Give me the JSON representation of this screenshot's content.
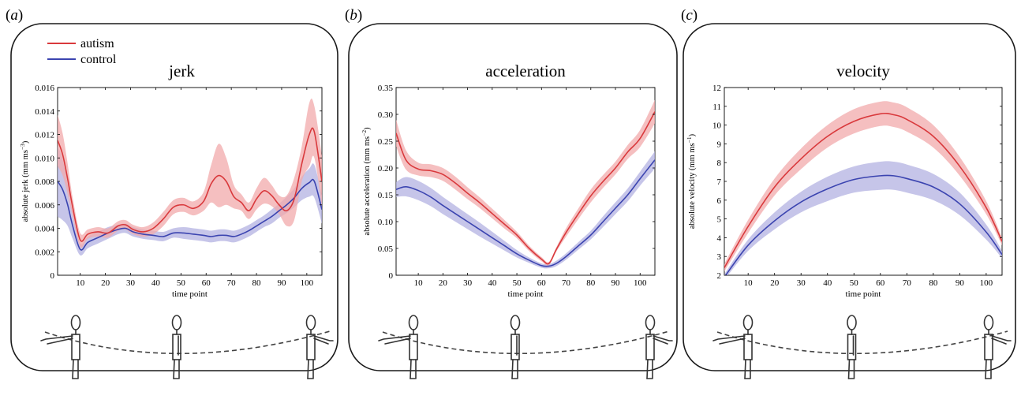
{
  "legend": {
    "items": [
      {
        "label": "autism",
        "color": "#d9393c"
      },
      {
        "label": "control",
        "color": "#3b44b0"
      }
    ]
  },
  "colors": {
    "autism_line": "#d9393c",
    "autism_band": "#f2a9ab",
    "control_line": "#3b44b0",
    "control_band": "#b3b2e2",
    "panel_border": "#1a1a1a",
    "figure_stroke": "#333333"
  },
  "chart_data": [
    {
      "panel_label": "(a)",
      "type": "line",
      "title": "jerk",
      "xlabel": "time point",
      "ylabel": "absolute jerk (mm ms",
      "ylabel_sup": "−3",
      "ylabel_end": ")",
      "xlim": [
        1,
        106
      ],
      "ylim": [
        0,
        0.016
      ],
      "xticks": [
        10,
        20,
        30,
        40,
        50,
        60,
        70,
        80,
        90,
        100
      ],
      "yticks": [
        0,
        0.002,
        0.004,
        0.006,
        0.008,
        0.01,
        0.012,
        0.014,
        0.016
      ],
      "ytick_labels": [
        "0",
        "0.002",
        "0.004",
        "0.006",
        "0.008",
        "0.010",
        "0.012",
        "0.014",
        "0.016"
      ],
      "series": [
        {
          "name": "autism",
          "x": [
            1,
            3,
            5,
            7,
            10,
            13,
            17,
            21,
            25,
            28,
            31,
            35,
            39,
            43,
            47,
            51,
            55,
            59,
            62,
            65,
            68,
            71,
            74,
            77,
            80,
            83,
            86,
            89,
            92,
            95,
            98,
            101,
            103,
            106
          ],
          "y": [
            0.0115,
            0.0103,
            0.0082,
            0.0058,
            0.003,
            0.0035,
            0.0037,
            0.0036,
            0.0042,
            0.0043,
            0.0039,
            0.0037,
            0.004,
            0.0048,
            0.0058,
            0.006,
            0.0057,
            0.0063,
            0.0078,
            0.0085,
            0.008,
            0.0067,
            0.0062,
            0.0055,
            0.0065,
            0.0072,
            0.0068,
            0.006,
            0.0055,
            0.0065,
            0.0095,
            0.012,
            0.0122,
            0.008
          ],
          "spread": [
            0.0022,
            0.0018,
            0.0013,
            0.0008,
            0.0006,
            0.0004,
            0.0004,
            0.0004,
            0.0004,
            0.0004,
            0.0004,
            0.0004,
            0.0005,
            0.0006,
            0.0006,
            0.0006,
            0.0006,
            0.0008,
            0.0016,
            0.0027,
            0.002,
            0.001,
            0.0007,
            0.0007,
            0.0009,
            0.0011,
            0.0009,
            0.0008,
            0.0013,
            0.0018,
            0.0015,
            0.0027,
            0.0022,
            0.0022
          ]
        },
        {
          "name": "control",
          "x": [
            1,
            3,
            5,
            7,
            10,
            13,
            17,
            21,
            25,
            28,
            31,
            35,
            39,
            43,
            47,
            51,
            55,
            59,
            62,
            65,
            68,
            71,
            74,
            77,
            80,
            83,
            86,
            89,
            92,
            95,
            98,
            101,
            103,
            106
          ],
          "y": [
            0.008,
            0.0073,
            0.006,
            0.0042,
            0.0022,
            0.0028,
            0.0032,
            0.0036,
            0.0039,
            0.004,
            0.0037,
            0.0035,
            0.0034,
            0.0033,
            0.0036,
            0.0036,
            0.0035,
            0.0034,
            0.0033,
            0.0034,
            0.0034,
            0.0033,
            0.0035,
            0.0038,
            0.0042,
            0.0046,
            0.005,
            0.0055,
            0.006,
            0.0066,
            0.0074,
            0.0079,
            0.008,
            0.0056
          ]
        },
        {
          "name": "",
          "role": "band",
          "x": [
            1,
            3,
            5,
            7,
            10,
            13,
            17,
            21,
            25,
            28,
            31,
            35,
            39,
            43,
            47,
            51,
            55,
            59,
            62,
            65,
            68,
            71,
            74,
            77,
            80,
            83,
            86,
            89,
            92,
            95,
            98,
            101,
            103,
            106
          ],
          "spread": [
            0.003,
            0.0026,
            0.0018,
            0.0011,
            0.0005,
            0.0005,
            0.0005,
            0.0005,
            0.0004,
            0.0004,
            0.0004,
            0.0004,
            0.0004,
            0.0004,
            0.0004,
            0.0005,
            0.0005,
            0.0005,
            0.0005,
            0.0005,
            0.0005,
            0.0005,
            0.0005,
            0.0005,
            0.0005,
            0.0005,
            0.0006,
            0.0006,
            0.0007,
            0.0008,
            0.001,
            0.0012,
            0.0014,
            0.0012
          ]
        }
      ]
    },
    {
      "panel_label": "(b)",
      "type": "line",
      "title": "acceleration",
      "xlabel": "time point",
      "ylabel": "absolute acceleration (mm ms",
      "ylabel_sup": "−2",
      "ylabel_end": ")",
      "xlim": [
        1,
        106
      ],
      "ylim": [
        0,
        0.35
      ],
      "xticks": [
        10,
        20,
        30,
        40,
        50,
        60,
        70,
        80,
        90,
        100
      ],
      "yticks": [
        0,
        0.05,
        0.1,
        0.15,
        0.2,
        0.25,
        0.3,
        0.35
      ],
      "ytick_labels": [
        "0",
        "0.05",
        "0.10",
        "0.15",
        "0.20",
        "0.25",
        "0.30",
        "0.35"
      ],
      "series": [
        {
          "name": "autism",
          "x": [
            1,
            5,
            10,
            15,
            20,
            25,
            30,
            35,
            40,
            45,
            50,
            55,
            60,
            63,
            66,
            70,
            75,
            80,
            85,
            90,
            95,
            100,
            106
          ],
          "y": [
            0.265,
            0.215,
            0.198,
            0.195,
            0.188,
            0.172,
            0.153,
            0.135,
            0.115,
            0.095,
            0.075,
            0.05,
            0.03,
            0.022,
            0.048,
            0.08,
            0.115,
            0.148,
            0.175,
            0.2,
            0.23,
            0.255,
            0.305
          ]
        },
        {
          "name": "control",
          "x": [
            1,
            5,
            10,
            15,
            20,
            25,
            30,
            35,
            40,
            45,
            50,
            55,
            60,
            63,
            66,
            70,
            75,
            80,
            85,
            90,
            95,
            100,
            106
          ],
          "y": [
            0.16,
            0.165,
            0.158,
            0.146,
            0.13,
            0.115,
            0.1,
            0.085,
            0.07,
            0.055,
            0.04,
            0.028,
            0.018,
            0.017,
            0.022,
            0.035,
            0.055,
            0.075,
            0.1,
            0.125,
            0.15,
            0.18,
            0.215
          ]
        },
        {
          "name": "",
          "role": "band",
          "x": [
            1,
            5,
            10,
            15,
            20,
            25,
            30,
            35,
            40,
            45,
            50,
            55,
            60,
            63,
            66,
            70,
            75,
            80,
            85,
            90,
            95,
            100,
            106
          ],
          "spread": [
            0.025,
            0.018,
            0.012,
            0.012,
            0.012,
            0.012,
            0.011,
            0.01,
            0.009,
            0.008,
            0.006,
            0.005,
            0.004,
            0.003,
            0.004,
            0.008,
            0.01,
            0.012,
            0.012,
            0.012,
            0.013,
            0.016,
            0.022
          ]
        },
        {
          "name": "",
          "role": "band",
          "x": [
            1,
            5,
            10,
            15,
            20,
            25,
            30,
            35,
            40,
            45,
            50,
            55,
            60,
            63,
            66,
            70,
            75,
            80,
            85,
            90,
            95,
            100,
            106
          ],
          "spread": [
            0.014,
            0.018,
            0.018,
            0.017,
            0.016,
            0.015,
            0.014,
            0.013,
            0.011,
            0.009,
            0.007,
            0.005,
            0.004,
            0.004,
            0.005,
            0.006,
            0.007,
            0.008,
            0.01,
            0.011,
            0.012,
            0.013,
            0.016
          ]
        }
      ]
    },
    {
      "panel_label": "(c)",
      "type": "line",
      "title": "velocity",
      "xlabel": "time point",
      "ylabel": "absolute velocity (mm ms",
      "ylabel_sup": "−1",
      "ylabel_end": ")",
      "xlim": [
        1,
        106
      ],
      "ylim": [
        2,
        12
      ],
      "xticks": [
        10,
        20,
        30,
        40,
        50,
        60,
        70,
        80,
        90,
        100
      ],
      "yticks": [
        2,
        3,
        4,
        5,
        6,
        7,
        8,
        9,
        10,
        11,
        12
      ],
      "ytick_labels": [
        "2",
        "3",
        "4",
        "5",
        "6",
        "7",
        "8",
        "9",
        "10",
        "11",
        "12"
      ],
      "series": [
        {
          "name": "autism",
          "x": [
            1,
            10,
            20,
            30,
            40,
            50,
            60,
            65,
            70,
            80,
            90,
            100,
            106
          ],
          "y": [
            2.4,
            4.6,
            6.7,
            8.2,
            9.4,
            10.2,
            10.6,
            10.55,
            10.3,
            9.4,
            7.8,
            5.6,
            3.8
          ]
        },
        {
          "name": "control",
          "x": [
            1,
            10,
            20,
            30,
            40,
            50,
            60,
            65,
            70,
            80,
            90,
            100,
            106
          ],
          "y": [
            1.9,
            3.6,
            4.9,
            5.9,
            6.6,
            7.1,
            7.3,
            7.3,
            7.15,
            6.7,
            5.8,
            4.3,
            3.1
          ]
        },
        {
          "name": "",
          "role": "band",
          "x": [
            1,
            10,
            20,
            30,
            40,
            50,
            60,
            65,
            70,
            80,
            90,
            100,
            106
          ],
          "spread": [
            0.2,
            0.35,
            0.45,
            0.55,
            0.6,
            0.65,
            0.65,
            0.65,
            0.65,
            0.6,
            0.5,
            0.35,
            0.2
          ]
        },
        {
          "name": "",
          "role": "band",
          "x": [
            1,
            10,
            20,
            30,
            40,
            50,
            60,
            65,
            70,
            80,
            90,
            100,
            106
          ],
          "spread": [
            0.15,
            0.3,
            0.45,
            0.55,
            0.65,
            0.7,
            0.75,
            0.75,
            0.75,
            0.7,
            0.6,
            0.4,
            0.2
          ]
        }
      ]
    }
  ]
}
